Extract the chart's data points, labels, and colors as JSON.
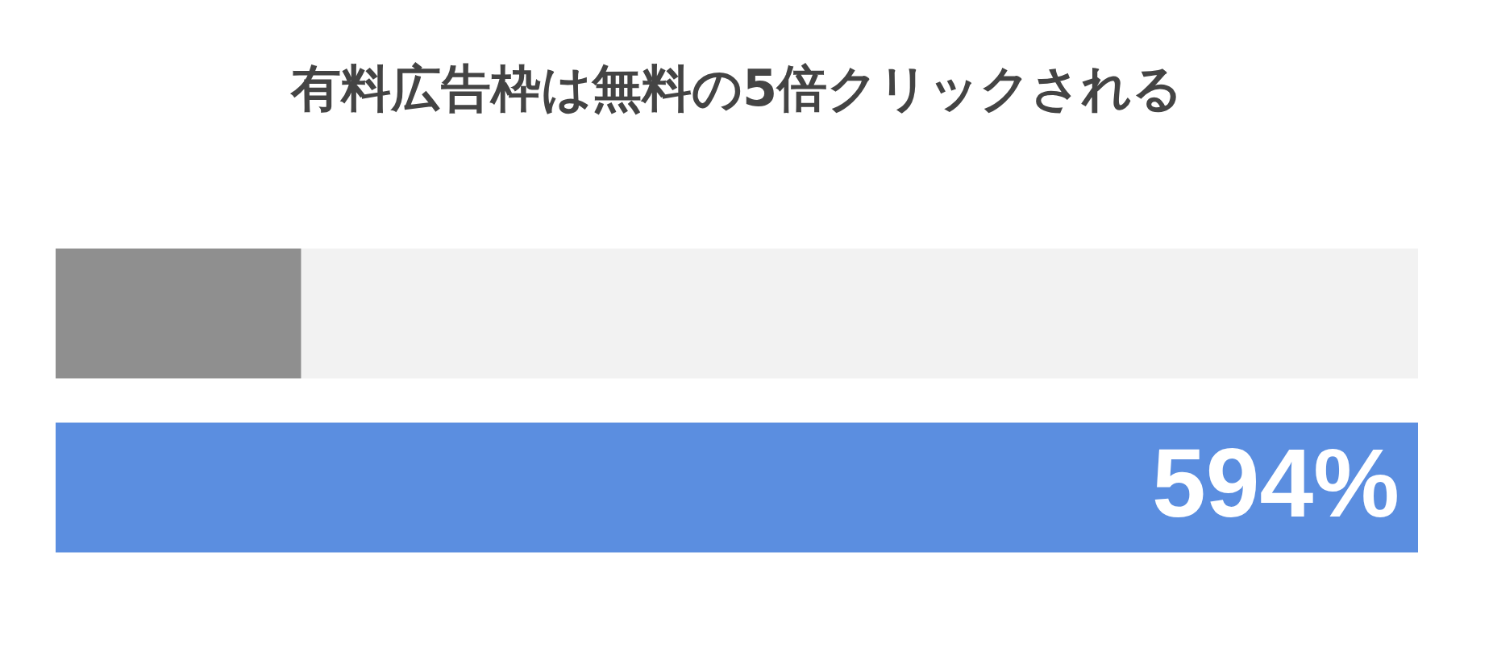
{
  "chart_data": {
    "type": "bar",
    "orientation": "horizontal",
    "title": "有料広告枠は無料の5倍クリックされる",
    "categories": [
      null,
      null
    ],
    "values": [
      107,
      594
    ],
    "colors": [
      "#8f8f8f",
      "#5b8ee0"
    ],
    "value_labels": [
      null,
      "594%"
    ],
    "xlim": [
      0,
      594
    ]
  }
}
